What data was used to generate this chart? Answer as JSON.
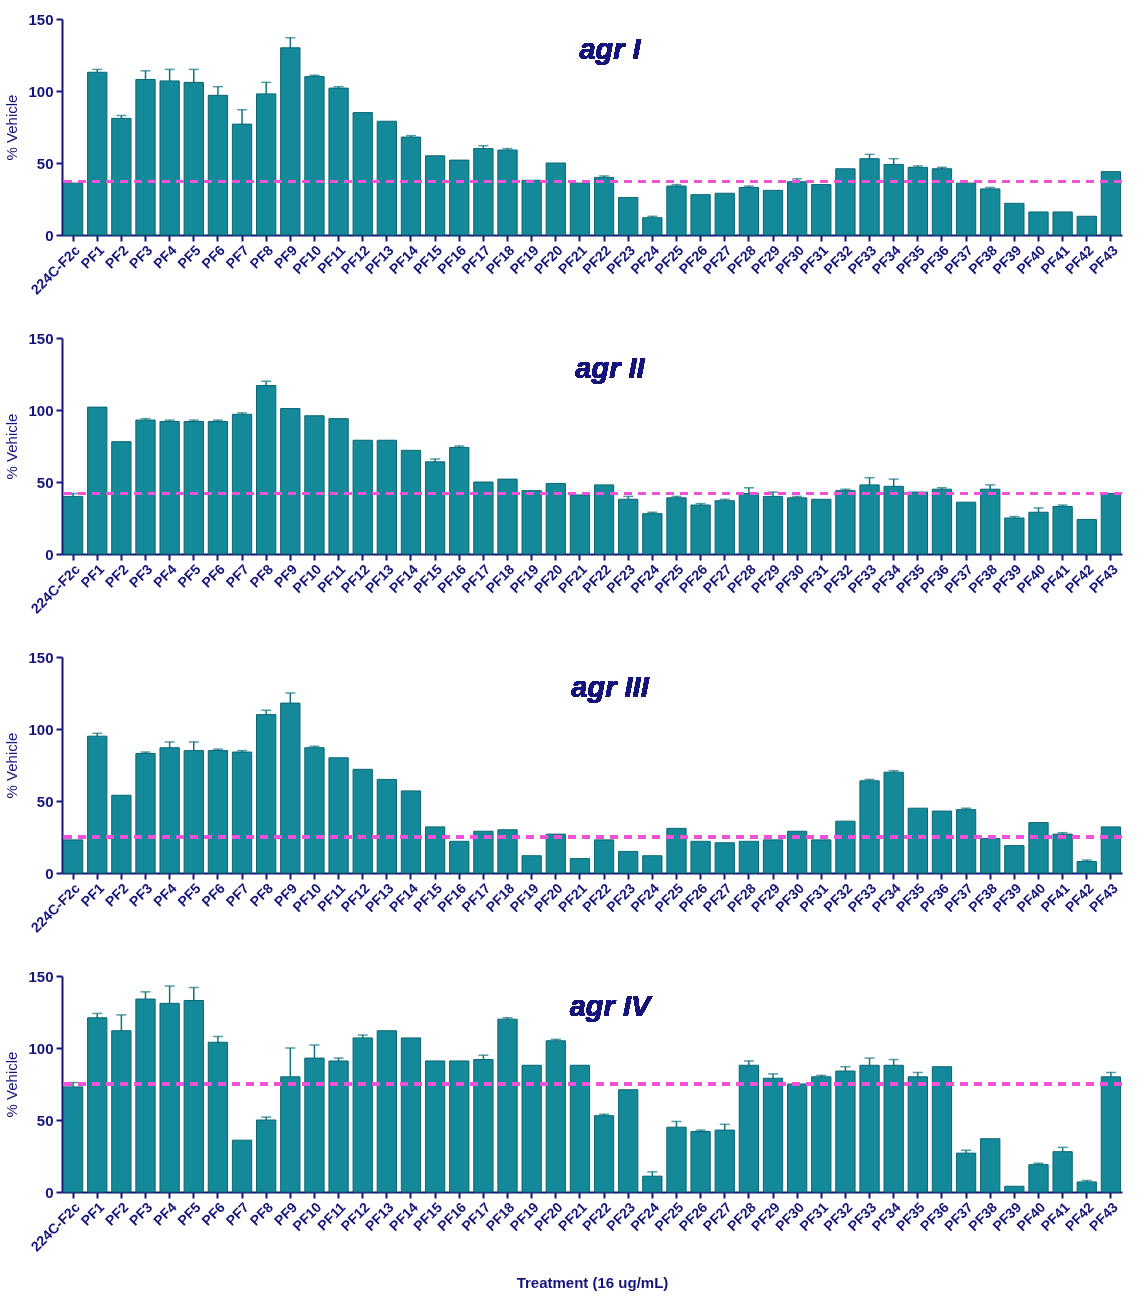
{
  "chart_data": [
    {
      "type": "bar",
      "title": "agr I",
      "ylabel": "% Vehicle",
      "color": "#13899a",
      "categories": [
        "224C-F2c",
        "PF1",
        "PF2",
        "PF3",
        "PF4",
        "PF5",
        "PF6",
        "PF7",
        "PF8",
        "PF9",
        "PF10",
        "PF11",
        "PF12",
        "PF13",
        "PF14",
        "PF15",
        "PF16",
        "PF17",
        "PF18",
        "PF19",
        "PF20",
        "PF21",
        "PF22",
        "PF23",
        "PF24",
        "PF25",
        "PF26",
        "PF27",
        "PF28",
        "PF29",
        "PF30",
        "PF31",
        "PF32",
        "PF33",
        "PF34",
        "PF35",
        "PF36",
        "PF37",
        "PF38",
        "PF39",
        "PF40",
        "PF41",
        "PF42",
        "PF43"
      ],
      "values": [
        36,
        113,
        81,
        108,
        107,
        106,
        97,
        77,
        98,
        130,
        110,
        102,
        85,
        79,
        68,
        55,
        52,
        60,
        59,
        38,
        50,
        36,
        40,
        26,
        12,
        34,
        28,
        29,
        33,
        31,
        37,
        35,
        46,
        53,
        49,
        47,
        46,
        36,
        32,
        22,
        16,
        16,
        13,
        44
      ],
      "errors": [
        null,
        2,
        2,
        6,
        8,
        9,
        6,
        10,
        8,
        7,
        1,
        1,
        null,
        null,
        1,
        null,
        null,
        2,
        1,
        null,
        null,
        null,
        1,
        null,
        1,
        1,
        null,
        null,
        1,
        null,
        2,
        null,
        null,
        3,
        4,
        1,
        1,
        null,
        1,
        null,
        null,
        null,
        null,
        null
      ],
      "ylim": [
        0,
        150
      ],
      "yticks": [
        0,
        50,
        100,
        150
      ],
      "ref_lines": [
        {
          "axis": "y",
          "value": 37,
          "color": "#f052d8",
          "line_style": "dashed"
        }
      ]
    },
    {
      "type": "bar",
      "title": "agr II",
      "ylabel": "% Vehicle",
      "color": "#13899a",
      "categories": [
        "224C-F2c",
        "PF1",
        "PF2",
        "PF3",
        "PF4",
        "PF5",
        "PF6",
        "PF7",
        "PF8",
        "PF9",
        "PF10",
        "PF11",
        "PF12",
        "PF13",
        "PF14",
        "PF15",
        "PF16",
        "PF17",
        "PF18",
        "PF19",
        "PF20",
        "PF21",
        "PF22",
        "PF23",
        "PF24",
        "PF25",
        "PF26",
        "PF27",
        "PF28",
        "PF29",
        "PF30",
        "PF31",
        "PF32",
        "PF33",
        "PF34",
        "PF35",
        "PF36",
        "PF37",
        "PF38",
        "PF39",
        "PF40",
        "PF41",
        "PF42",
        "PF43"
      ],
      "values": [
        40,
        102,
        78,
        93,
        92,
        92,
        92,
        97,
        117,
        101,
        96,
        94,
        79,
        79,
        72,
        64,
        74,
        50,
        52,
        44,
        49,
        41,
        48,
        38,
        28,
        39,
        34,
        37,
        42,
        40,
        39,
        38,
        44,
        48,
        47,
        43,
        45,
        36,
        45,
        25,
        29,
        33,
        24,
        42
      ],
      "errors": [
        2,
        null,
        null,
        1,
        1,
        1,
        1,
        1,
        3,
        null,
        null,
        null,
        null,
        null,
        null,
        2,
        1,
        null,
        null,
        null,
        null,
        null,
        null,
        2,
        1,
        1,
        1,
        1,
        4,
        3,
        1,
        null,
        1,
        5,
        5,
        null,
        1,
        null,
        3,
        1,
        3,
        1,
        null,
        null
      ],
      "ylim": [
        0,
        150
      ],
      "yticks": [
        0,
        50,
        100,
        150
      ],
      "ref_lines": [
        {
          "axis": "y",
          "value": 42,
          "color": "#f052d8",
          "line_style": "dashed"
        }
      ]
    },
    {
      "type": "bar",
      "title": "agr III",
      "ylabel": "% Vehicle",
      "color": "#13899a",
      "categories": [
        "224C-F2c",
        "PF1",
        "PF2",
        "PF3",
        "PF4",
        "PF5",
        "PF6",
        "PF7",
        "PF8",
        "PF9",
        "PF10",
        "PF11",
        "PF12",
        "PF13",
        "PF14",
        "PF15",
        "PF16",
        "PF17",
        "PF18",
        "PF19",
        "PF20",
        "PF21",
        "PF22",
        "PF23",
        "PF24",
        "PF25",
        "PF26",
        "PF27",
        "PF28",
        "PF29",
        "PF30",
        "PF31",
        "PF32",
        "PF33",
        "PF34",
        "PF35",
        "PF36",
        "PF37",
        "PF38",
        "PF39",
        "PF40",
        "PF41",
        "PF42",
        "PF43"
      ],
      "values": [
        23,
        95,
        54,
        83,
        87,
        85,
        85,
        84,
        110,
        118,
        87,
        80,
        72,
        65,
        57,
        32,
        22,
        29,
        30,
        12,
        27,
        10,
        23,
        15,
        12,
        31,
        22,
        21,
        22,
        23,
        29,
        23,
        36,
        64,
        70,
        45,
        43,
        44,
        24,
        19,
        35,
        27,
        8,
        32
      ],
      "errors": [
        null,
        2,
        null,
        1,
        4,
        6,
        1,
        1,
        3,
        7,
        1,
        null,
        null,
        null,
        null,
        null,
        null,
        null,
        null,
        null,
        null,
        null,
        null,
        null,
        null,
        null,
        null,
        null,
        null,
        null,
        null,
        null,
        null,
        1,
        1,
        null,
        null,
        1,
        null,
        null,
        null,
        1,
        1,
        null
      ],
      "ylim": [
        0,
        150
      ],
      "yticks": [
        0,
        50,
        100,
        150
      ],
      "ref_lines": [
        {
          "axis": "y",
          "value": 25,
          "color": "#f052d8",
          "line_style": "dashed"
        }
      ]
    },
    {
      "type": "bar",
      "title": "agr IV",
      "ylabel": "% Vehicle",
      "xlabel": "Treatment (16 ug/mL)",
      "color": "#13899a",
      "categories": [
        "224C-F2c",
        "PF1",
        "PF2",
        "PF3",
        "PF4",
        "PF5",
        "PF6",
        "PF7",
        "PF8",
        "PF9",
        "PF10",
        "PF11",
        "PF12",
        "PF13",
        "PF14",
        "PF15",
        "PF16",
        "PF17",
        "PF18",
        "PF19",
        "PF20",
        "PF21",
        "PF22",
        "PF23",
        "PF24",
        "PF25",
        "PF26",
        "PF27",
        "PF28",
        "PF29",
        "PF30",
        "PF31",
        "PF32",
        "PF33",
        "PF34",
        "PF35",
        "PF36",
        "PF37",
        "PF38",
        "PF39",
        "PF40",
        "PF41",
        "PF42",
        "PF43"
      ],
      "values": [
        73,
        121,
        112,
        134,
        131,
        133,
        104,
        36,
        50,
        80,
        93,
        91,
        107,
        112,
        107,
        91,
        91,
        92,
        120,
        88,
        105,
        88,
        53,
        71,
        11,
        45,
        42,
        43,
        88,
        79,
        75,
        80,
        84,
        88,
        88,
        80,
        87,
        27,
        37,
        4,
        19,
        28,
        7,
        80
      ],
      "errors": [
        3,
        3,
        11,
        5,
        12,
        9,
        4,
        null,
        2,
        20,
        9,
        2,
        2,
        null,
        null,
        null,
        null,
        3,
        1,
        null,
        1,
        null,
        1,
        null,
        3,
        4,
        1,
        4,
        3,
        3,
        null,
        1,
        3,
        5,
        4,
        3,
        null,
        2,
        null,
        null,
        1,
        3,
        1,
        3
      ],
      "ylim": [
        0,
        150
      ],
      "yticks": [
        0,
        50,
        100,
        150
      ],
      "ref_lines": [
        {
          "axis": "y",
          "value": 75,
          "color": "#f052d8",
          "line_style": "dashed"
        }
      ]
    }
  ]
}
